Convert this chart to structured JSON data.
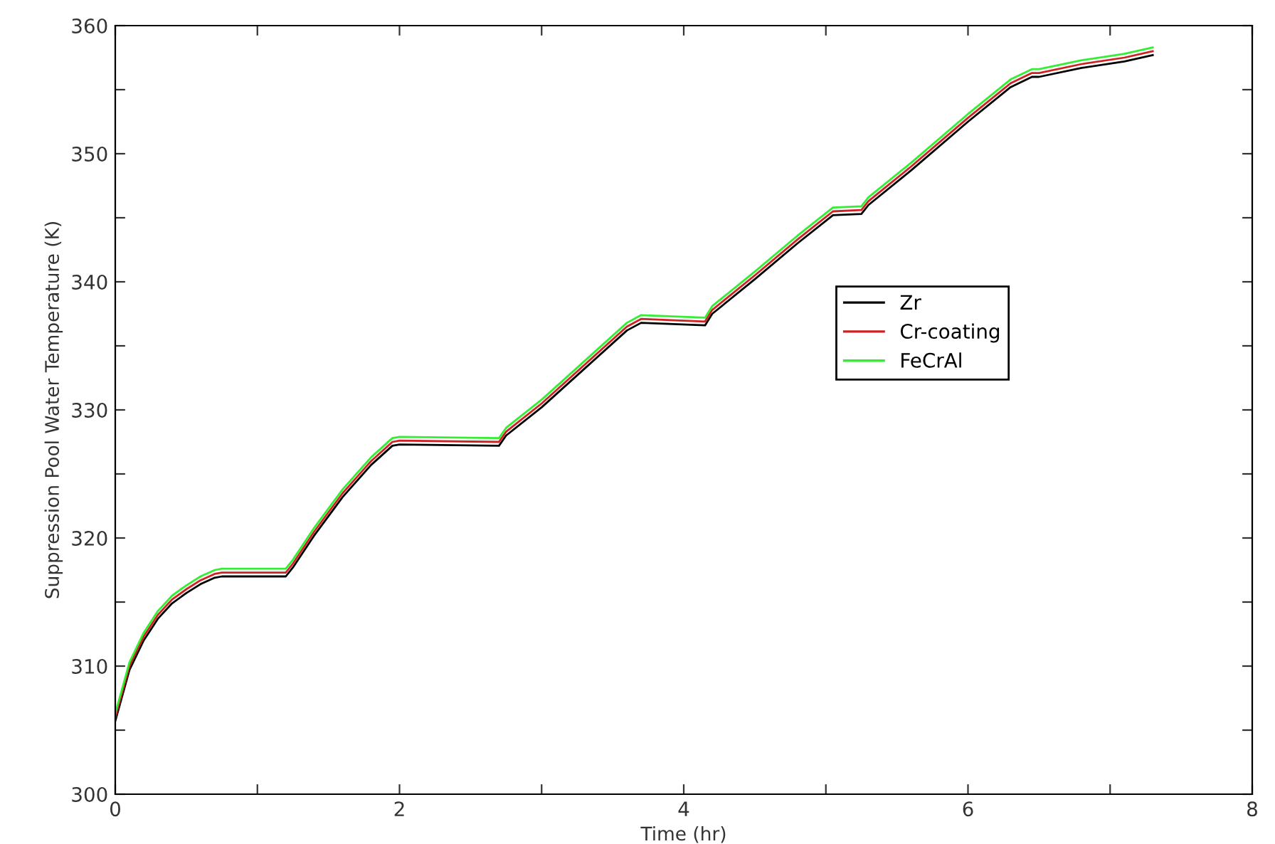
{
  "chart_data": {
    "type": "line",
    "xlabel": "Time (hr)",
    "ylabel": "Suppression Pool Water Temperature (K)",
    "xlim": [
      0,
      8
    ],
    "ylim": [
      300,
      360
    ],
    "xticks": [
      0,
      {
        "value": 1,
        "label": null
      },
      2,
      {
        "value": 3,
        "label": null
      },
      4,
      {
        "value": 5,
        "label": null
      },
      6,
      {
        "value": 7,
        "label": null
      },
      8
    ],
    "yticks": [
      300,
      {
        "value": 305,
        "label": null
      },
      310,
      {
        "value": 315,
        "label": null
      },
      320,
      {
        "value": 325,
        "label": null
      },
      330,
      {
        "value": 335,
        "label": null
      },
      340,
      {
        "value": 345,
        "label": null
      },
      350,
      {
        "value": 355,
        "label": null
      },
      360
    ],
    "grid": false,
    "legend": "right",
    "marker": "none",
    "line_style": "solid",
    "x": [
      0,
      0.1,
      0.2,
      0.3,
      0.4,
      0.5,
      0.6,
      0.7,
      0.75,
      1.2,
      1.25,
      1.4,
      1.6,
      1.8,
      1.95,
      2.0,
      2.7,
      2.75,
      3.0,
      3.3,
      3.6,
      3.7,
      4.15,
      4.2,
      4.5,
      4.8,
      5.05,
      5.25,
      5.3,
      5.6,
      6.0,
      6.3,
      6.45,
      6.5,
      6.8,
      7.1,
      7.3
    ],
    "series": [
      {
        "name": "Zr",
        "color": "#000000",
        "values": [
          305.7,
          309.7,
          312,
          313.7,
          314.9,
          315.7,
          316.4,
          316.9,
          317,
          317,
          317.7,
          320.2,
          323.2,
          325.7,
          327.2,
          327.3,
          327.2,
          328,
          330.2,
          333.2,
          336.2,
          336.8,
          336.6,
          337.5,
          340.2,
          343,
          345.2,
          345.3,
          346,
          348.7,
          352.5,
          355.2,
          356,
          356,
          356.7,
          357.2,
          357.7
        ]
      },
      {
        "name": "Cr-coating",
        "color": "#cc2222",
        "values": [
          306,
          310,
          312.3,
          314,
          315.2,
          316,
          316.7,
          317.2,
          317.3,
          317.3,
          318,
          320.5,
          323.5,
          326,
          327.5,
          327.6,
          327.5,
          328.3,
          330.5,
          333.5,
          336.5,
          337.1,
          336.9,
          337.8,
          340.5,
          343.3,
          345.5,
          345.6,
          346.3,
          349,
          352.8,
          355.5,
          356.3,
          356.3,
          357,
          357.5,
          358
        ]
      },
      {
        "name": "FeCrAl",
        "color": "#33ee33",
        "values": [
          306.3,
          310.3,
          312.6,
          314.3,
          315.5,
          316.3,
          317,
          317.5,
          317.6,
          317.6,
          318.3,
          320.8,
          323.8,
          326.3,
          327.8,
          327.9,
          327.8,
          328.6,
          330.8,
          333.8,
          336.8,
          337.4,
          337.2,
          338.1,
          340.8,
          343.6,
          345.8,
          345.9,
          346.6,
          349.3,
          353.1,
          355.8,
          356.6,
          356.6,
          357.3,
          357.8,
          358.3
        ]
      }
    ]
  }
}
